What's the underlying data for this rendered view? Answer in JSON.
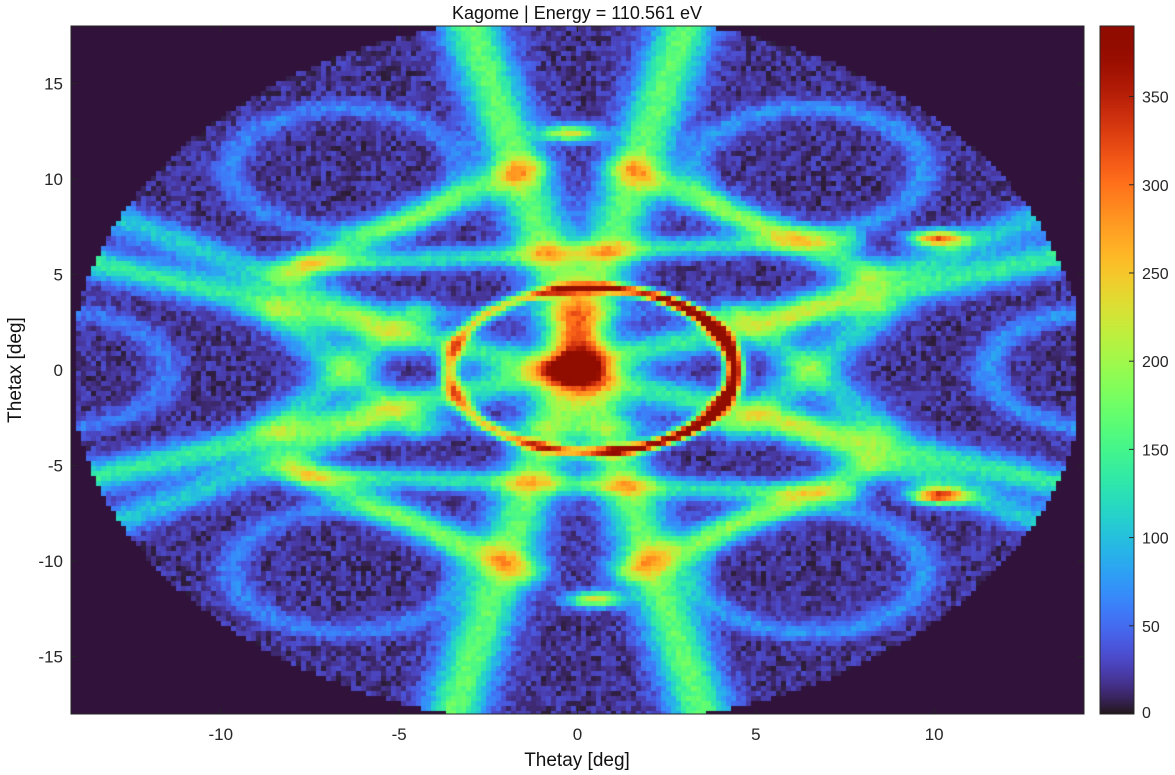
{
  "chart_data": {
    "type": "heatmap",
    "title": "Kagome | Energy = 110.561 eV",
    "xlabel": "Thetay [deg]",
    "ylabel": "Thetax [deg]",
    "xlim": [
      -14.2,
      14.2
    ],
    "ylim": [
      -18,
      18
    ],
    "xticks": [
      -10,
      -5,
      0,
      5,
      10
    ],
    "yticks": [
      15,
      10,
      5,
      0,
      -5,
      -10,
      -15
    ],
    "xtick_labels": [
      "-10",
      "-5",
      "0",
      "5",
      "10"
    ],
    "ytick_labels": [
      "15",
      "10",
      "5",
      "0",
      "-5",
      "-10",
      "-15"
    ],
    "colorbar": {
      "colormap": "turbo",
      "range": [
        0,
        390
      ],
      "ticks": [
        0,
        50,
        100,
        150,
        200,
        250,
        300,
        350
      ],
      "tick_labels": [
        "0",
        "50",
        "100",
        "150",
        "200",
        "250",
        "300",
        "350"
      ]
    },
    "background_value": 18,
    "ring_center": [
      0.4,
      0
    ],
    "ring_peak": 370,
    "corner_hotspots": [
      {
        "thetay": 10.1,
        "thetax": 6.9,
        "value": 390
      },
      {
        "thetay": 10.1,
        "thetax": -6.6,
        "value": 390
      },
      {
        "thetay": -0.2,
        "thetax": 12.4,
        "value": 330
      },
      {
        "thetay": 0.5,
        "thetax": -12.0,
        "value": 330
      }
    ],
    "grid": false
  },
  "colors": {
    "frame": "#262626",
    "outside_mask": "#30123b"
  }
}
